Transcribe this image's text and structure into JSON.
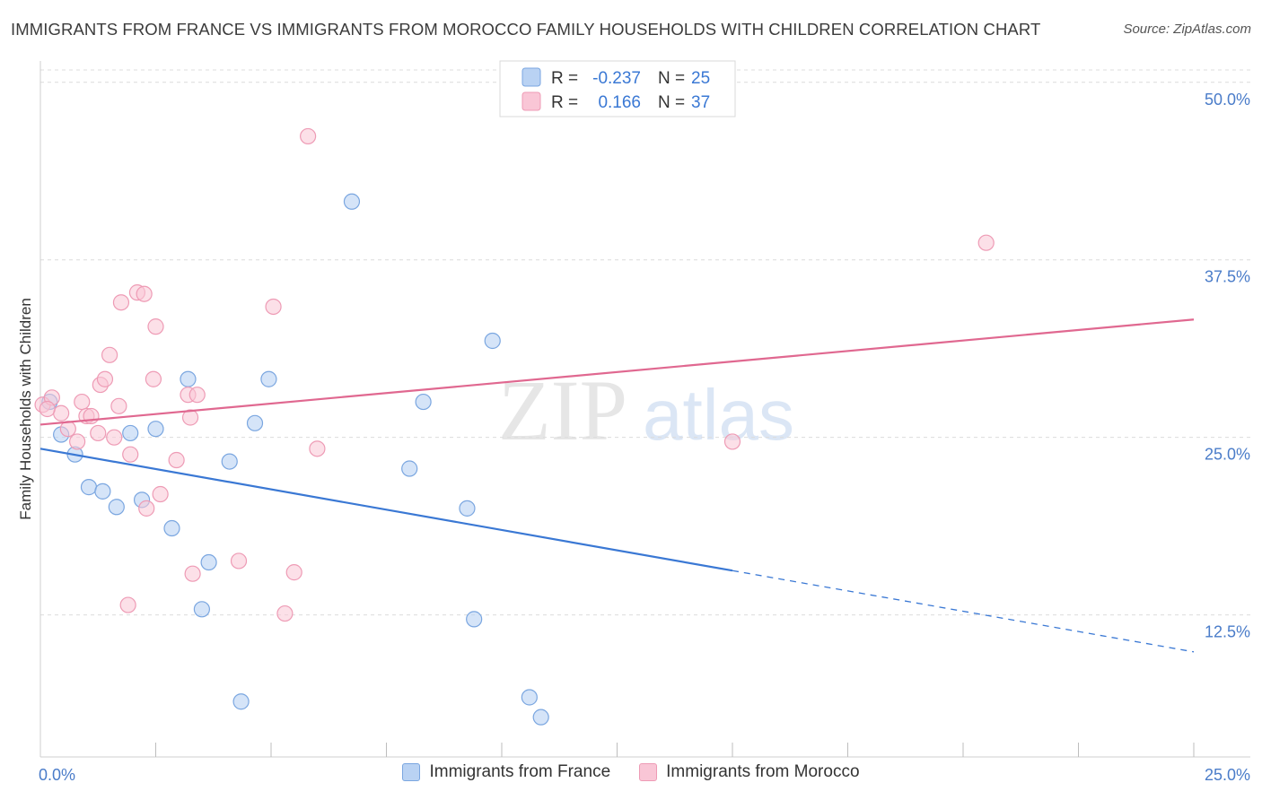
{
  "header": {
    "title": "IMMIGRANTS FROM FRANCE VS IMMIGRANTS FROM MOROCCO FAMILY HOUSEHOLDS WITH CHILDREN CORRELATION CHART",
    "source": "Source: ZipAtlas.com"
  },
  "watermark": {
    "zip": "ZIP",
    "atlas": "atlas"
  },
  "colors": {
    "france_fill": "#b9d2f3",
    "france_stroke": "#7aa6e0",
    "france_line": "#3a78d4",
    "morocco_fill": "#f9c6d6",
    "morocco_stroke": "#ee9bb5",
    "morocco_line": "#e06890",
    "tick_label": "#4a7cc9"
  },
  "stats": {
    "france": {
      "r_label": "R =",
      "r_value": "-0.237",
      "n_label": "N =",
      "n_value": "25"
    },
    "morocco": {
      "r_label": "R =",
      "r_value": "0.166",
      "n_label": "N =",
      "n_value": "37"
    }
  },
  "legend": {
    "france": "Immigrants from France",
    "morocco": "Immigrants from Morocco"
  },
  "chart_data": {
    "type": "scatter",
    "title": "IMMIGRANTS FROM FRANCE VS IMMIGRANTS FROM MOROCCO FAMILY HOUSEHOLDS WITH CHILDREN CORRELATION CHART",
    "xlabel": "",
    "ylabel": "Family Households with Children",
    "xlim": [
      0,
      25
    ],
    "ylim": [
      2.5,
      51.5
    ],
    "x_tick_labels": [
      {
        "value": 0,
        "label": "0.0%"
      },
      {
        "value": 25,
        "label": "25.0%"
      }
    ],
    "y_ticks": [
      {
        "value": 12.5,
        "label": "12.5%"
      },
      {
        "value": 25.0,
        "label": "25.0%"
      },
      {
        "value": 37.5,
        "label": "37.5%"
      },
      {
        "value": 50.0,
        "label": "50.0%"
      }
    ],
    "x_minor_ticks": [
      2.5,
      5,
      7.5,
      10,
      12.5,
      15,
      17.5,
      20,
      22.5,
      25
    ],
    "series": [
      {
        "name": "Immigrants from France",
        "points": [
          [
            0.2,
            27.5
          ],
          [
            0.45,
            25.2
          ],
          [
            0.75,
            23.8
          ],
          [
            1.05,
            21.5
          ],
          [
            1.35,
            21.2
          ],
          [
            1.65,
            20.1
          ],
          [
            1.95,
            25.3
          ],
          [
            2.2,
            20.6
          ],
          [
            2.5,
            25.6
          ],
          [
            2.85,
            18.6
          ],
          [
            3.2,
            29.1
          ],
          [
            3.5,
            12.9
          ],
          [
            3.65,
            16.2
          ],
          [
            4.1,
            23.3
          ],
          [
            4.35,
            6.4
          ],
          [
            4.65,
            26.0
          ],
          [
            4.95,
            29.1
          ],
          [
            6.75,
            41.6
          ],
          [
            8.0,
            22.8
          ],
          [
            8.3,
            27.5
          ],
          [
            9.25,
            20.0
          ],
          [
            9.4,
            12.2
          ],
          [
            9.8,
            31.8
          ],
          [
            10.6,
            6.7
          ],
          [
            10.85,
            5.3
          ]
        ],
        "trend": {
          "x0": 0,
          "y0": 24.2,
          "x_solid_end": 15.0,
          "x1": 25,
          "y1": 9.9
        }
      },
      {
        "name": "Immigrants from Morocco",
        "points": [
          [
            0.05,
            27.3
          ],
          [
            0.25,
            27.8
          ],
          [
            0.45,
            26.7
          ],
          [
            0.6,
            25.6
          ],
          [
            0.8,
            24.7
          ],
          [
            0.9,
            27.5
          ],
          [
            1.0,
            26.5
          ],
          [
            1.1,
            26.5
          ],
          [
            1.25,
            25.3
          ],
          [
            1.3,
            28.7
          ],
          [
            1.4,
            29.1
          ],
          [
            1.5,
            30.8
          ],
          [
            1.6,
            25.0
          ],
          [
            1.7,
            27.2
          ],
          [
            1.75,
            34.5
          ],
          [
            1.9,
            13.2
          ],
          [
            1.95,
            23.8
          ],
          [
            2.1,
            35.2
          ],
          [
            2.25,
            35.1
          ],
          [
            2.3,
            20.0
          ],
          [
            2.45,
            29.1
          ],
          [
            2.5,
            32.8
          ],
          [
            2.6,
            21.0
          ],
          [
            2.95,
            23.4
          ],
          [
            3.2,
            28.0
          ],
          [
            3.25,
            26.4
          ],
          [
            3.3,
            15.4
          ],
          [
            3.4,
            28.0
          ],
          [
            4.3,
            16.3
          ],
          [
            5.05,
            34.2
          ],
          [
            5.3,
            12.6
          ],
          [
            5.5,
            15.5
          ],
          [
            5.8,
            46.2
          ],
          [
            6.0,
            24.2
          ],
          [
            15.0,
            24.7
          ],
          [
            20.5,
            38.7
          ],
          [
            0.15,
            27.0
          ]
        ],
        "trend": {
          "x0": 0,
          "y0": 25.9,
          "x1": 25,
          "y1": 33.3
        }
      }
    ]
  }
}
